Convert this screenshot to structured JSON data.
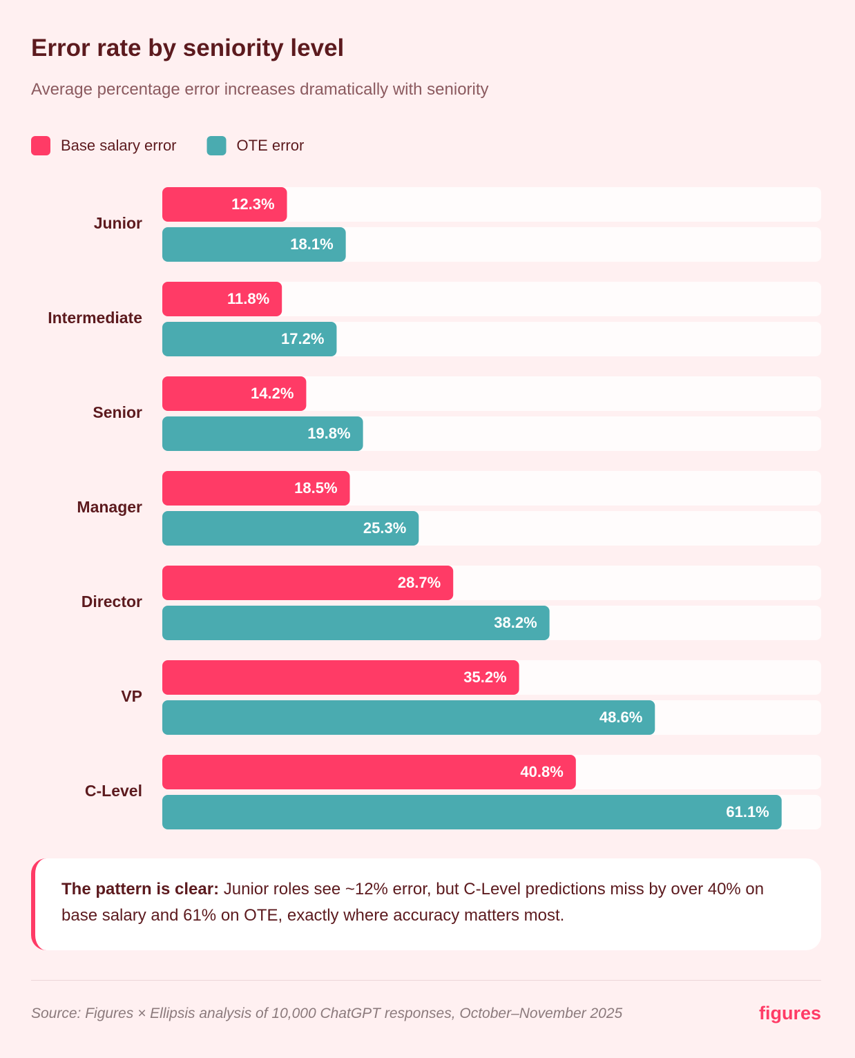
{
  "chart_data": {
    "type": "bar",
    "orientation": "horizontal",
    "title": "Error rate by seniority level",
    "subtitle": "Average percentage error increases dramatically with seniority",
    "categories": [
      "Junior",
      "Intermediate",
      "Senior",
      "Manager",
      "Director",
      "VP",
      "C-Level"
    ],
    "series": [
      {
        "name": "Base salary error",
        "color": "#ff3b66",
        "values": [
          12.3,
          11.8,
          14.2,
          18.5,
          28.7,
          35.2,
          40.8
        ],
        "value_labels": [
          "12.3%",
          "11.8%",
          "14.2%",
          "18.5%",
          "28.7%",
          "35.2%",
          "40.8%"
        ]
      },
      {
        "name": "OTE error",
        "color": "#4aabb0",
        "values": [
          18.1,
          17.2,
          19.8,
          25.3,
          38.2,
          48.6,
          61.1
        ],
        "value_labels": [
          "18.1%",
          "17.2%",
          "19.8%",
          "25.3%",
          "38.2%",
          "48.6%",
          "61.1%"
        ]
      }
    ],
    "xlim": [
      0,
      65
    ]
  },
  "callout": {
    "lead": "The pattern is clear:",
    "text": "Junior roles see ~12% error, but C-Level predictions miss by over 40% on base salary and 61% on OTE, exactly where accuracy matters most."
  },
  "footer": {
    "source": "Source: Figures × Ellipsis analysis of 10,000 ChatGPT responses, October–November 2025",
    "brand": "figures"
  }
}
